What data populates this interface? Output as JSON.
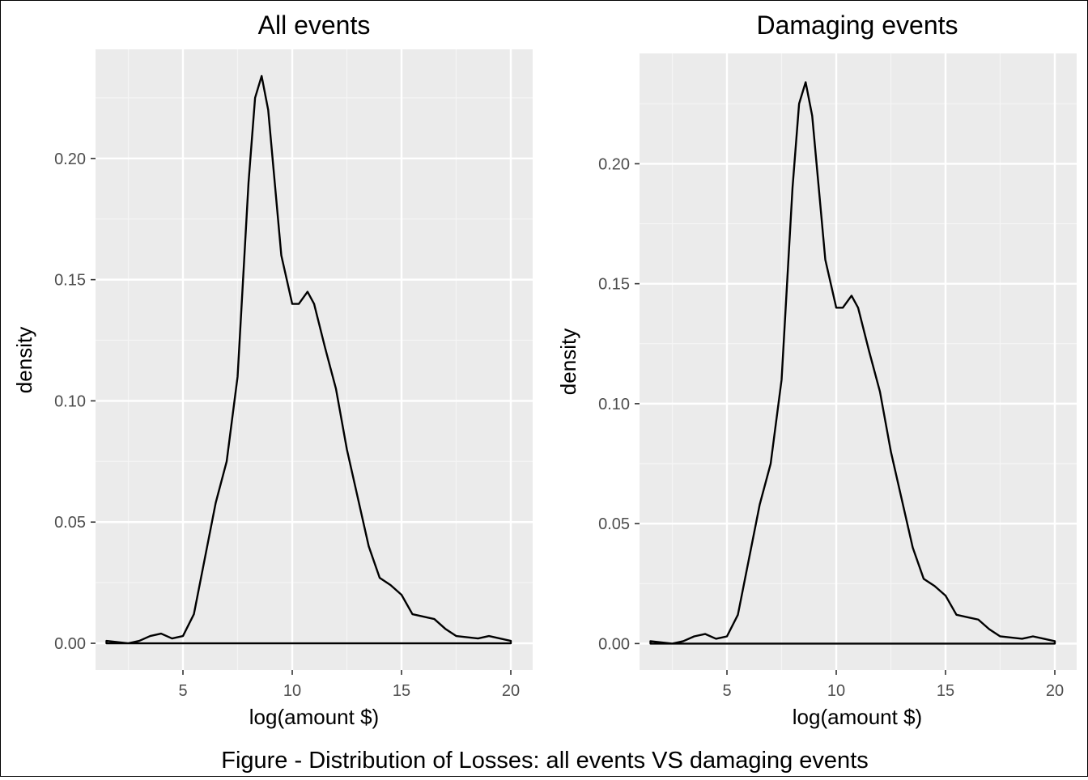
{
  "figure": {
    "caption": "Figure - Distribution of Losses: all events VS damaging events"
  },
  "theme": {
    "panel_background": "#ebebeb",
    "grid_major": "#ffffff",
    "grid_minor": "#f5f5f5",
    "line_color": "#000000",
    "tick_label_color": "#4d4d4d"
  },
  "chart_data": [
    {
      "type": "line",
      "title": "All events",
      "xlabel": "log(amount $)",
      "ylabel": "density",
      "xlim": [
        1.0,
        21.0
      ],
      "ylim": [
        -0.011,
        0.245
      ],
      "xticks": [
        5,
        10,
        15,
        20
      ],
      "xtick_labels": [
        "5",
        "10",
        "15",
        "20"
      ],
      "yticks": [
        0.0,
        0.05,
        0.1,
        0.15,
        0.2
      ],
      "ytick_labels": [
        "0.00",
        "0.05",
        "0.10",
        "0.15",
        "0.20"
      ],
      "grid": true,
      "series": [
        {
          "x": [
            1.5,
            2.0,
            2.5,
            3.0,
            3.5,
            4.0,
            4.5,
            5.0,
            5.5,
            6.0,
            6.5,
            7.0,
            7.5,
            8.0,
            8.3,
            8.6,
            8.9,
            9.2,
            9.5,
            10.0,
            10.3,
            10.7,
            11.0,
            11.5,
            12.0,
            12.5,
            13.0,
            13.5,
            14.0,
            14.5,
            15.0,
            15.5,
            16.0,
            16.5,
            17.0,
            17.5,
            18.0,
            18.5,
            19.0,
            19.5,
            20.0
          ],
          "y": [
            0.001,
            0.0005,
            0.0,
            0.001,
            0.003,
            0.004,
            0.002,
            0.003,
            0.012,
            0.035,
            0.058,
            0.075,
            0.11,
            0.19,
            0.225,
            0.234,
            0.22,
            0.19,
            0.16,
            0.14,
            0.14,
            0.145,
            0.14,
            0.122,
            0.105,
            0.08,
            0.06,
            0.04,
            0.027,
            0.024,
            0.02,
            0.012,
            0.011,
            0.01,
            0.006,
            0.003,
            0.0025,
            0.002,
            0.003,
            0.002,
            0.001
          ]
        }
      ]
    },
    {
      "type": "line",
      "title": "Damaging events",
      "xlabel": "log(amount $)",
      "ylabel": "density",
      "xlim": [
        1.0,
        21.0
      ],
      "ylim": [
        -0.011,
        0.246
      ],
      "xticks": [
        5,
        10,
        15,
        20
      ],
      "xtick_labels": [
        "5",
        "10",
        "15",
        "20"
      ],
      "yticks": [
        0.0,
        0.05,
        0.1,
        0.15,
        0.2
      ],
      "ytick_labels": [
        "0.00",
        "0.05",
        "0.10",
        "0.15",
        "0.20"
      ],
      "grid": true,
      "series": [
        {
          "x": [
            1.5,
            2.0,
            2.5,
            3.0,
            3.5,
            4.0,
            4.5,
            5.0,
            5.5,
            6.0,
            6.5,
            7.0,
            7.5,
            8.0,
            8.3,
            8.6,
            8.9,
            9.2,
            9.5,
            10.0,
            10.3,
            10.7,
            11.0,
            11.5,
            12.0,
            12.5,
            13.0,
            13.5,
            14.0,
            14.5,
            15.0,
            15.5,
            16.0,
            16.5,
            17.0,
            17.5,
            18.0,
            18.5,
            19.0,
            19.5,
            20.0
          ],
          "y": [
            0.001,
            0.0005,
            0.0,
            0.001,
            0.003,
            0.004,
            0.002,
            0.003,
            0.012,
            0.035,
            0.058,
            0.075,
            0.11,
            0.19,
            0.225,
            0.234,
            0.22,
            0.19,
            0.16,
            0.14,
            0.14,
            0.145,
            0.14,
            0.122,
            0.105,
            0.08,
            0.06,
            0.04,
            0.027,
            0.024,
            0.02,
            0.012,
            0.011,
            0.01,
            0.006,
            0.003,
            0.0025,
            0.002,
            0.003,
            0.002,
            0.001
          ]
        }
      ]
    }
  ]
}
